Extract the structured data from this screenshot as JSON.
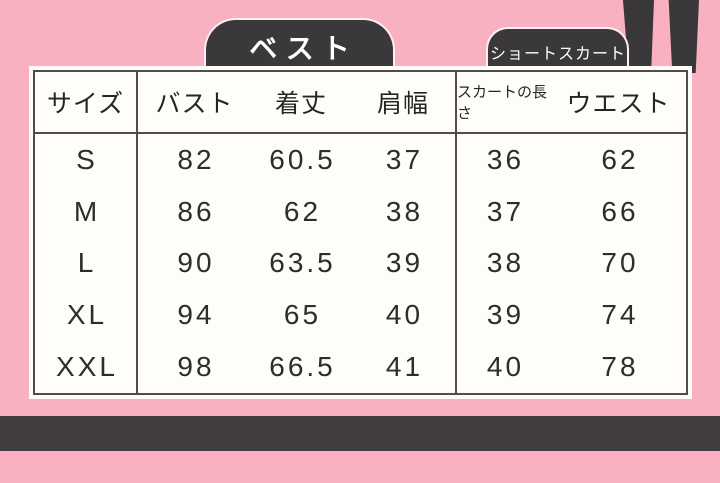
{
  "colors": {
    "background": "#f9b1c1",
    "tab_fill": "#3b383b",
    "table_border": "#514c48",
    "table_background": "#fffdf9",
    "bottom_bar": "#403c3f",
    "text": "#2e2d2b"
  },
  "tabs": {
    "vest": "ベスト",
    "short_skirt": "ショートスカート"
  },
  "chart_data": {
    "type": "table",
    "title": "",
    "section_tabs": [
      "ベスト",
      "ショートスカート"
    ],
    "columns": [
      "サイズ",
      "バスト",
      "着丈",
      "肩幅",
      "スカートの長さ",
      "ウエスト"
    ],
    "rows": [
      [
        "S",
        "82",
        "60.5",
        "37",
        "36",
        "62"
      ],
      [
        "M",
        "86",
        "62",
        "38",
        "37",
        "66"
      ],
      [
        "L",
        "90",
        "63.5",
        "39",
        "38",
        "70"
      ],
      [
        "XL",
        "94",
        "65",
        "40",
        "39",
        "74"
      ],
      [
        "XXL",
        "98",
        "66.5",
        "41",
        "40",
        "78"
      ]
    ]
  }
}
